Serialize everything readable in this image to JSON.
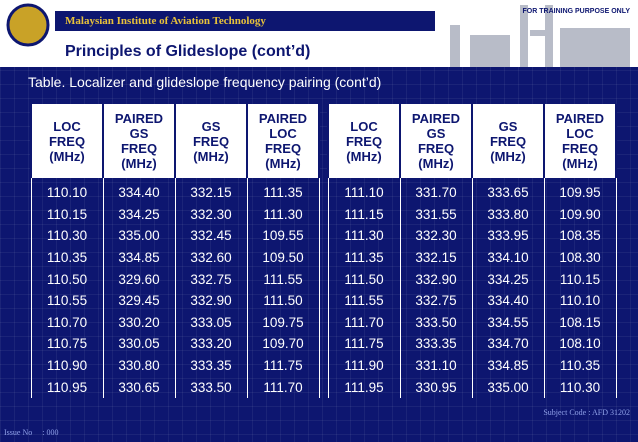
{
  "header": {
    "institute": "Malaysian Institute of Aviation Technology",
    "notice": "FOR TRAINING PURPOSE ONLY",
    "title": "Principles of Glideslope (cont’d)"
  },
  "caption": "Table.  Localizer and glideslope frequency pairing (cont’d)",
  "tables": [
    {
      "headers": [
        "LOC\nFREQ\n(MHz)",
        "PAIRED\nGS\nFREQ\n(MHz)",
        "GS\nFREQ\n(MHz)",
        "PAIRED\nLOC\nFREQ\n(MHz)"
      ],
      "rows": [
        [
          "110.10",
          "334.40",
          "332.15",
          "111.35"
        ],
        [
          "110.15",
          "334.25",
          "332.30",
          "111.30"
        ],
        [
          "110.30",
          "335.00",
          "332.45",
          "109.55"
        ],
        [
          "110.35",
          "334.85",
          "332.60",
          "109.50"
        ],
        [
          "110.50",
          "329.60",
          "332.75",
          "111.55"
        ],
        [
          "110.55",
          "329.45",
          "332.90",
          "111.50"
        ],
        [
          "110.70",
          "330.20",
          "333.05",
          "109.75"
        ],
        [
          "110.75",
          "330.05",
          "333.20",
          "109.70"
        ],
        [
          "110.90",
          "330.80",
          "333.35",
          "111.75"
        ],
        [
          "110.95",
          "330.65",
          "333.50",
          "111.70"
        ]
      ]
    },
    {
      "headers": [
        "LOC\nFREQ\n(MHz)",
        "PAIRED\nGS\nFREQ\n(MHz)",
        "GS\nFREQ\n(MHz)",
        "PAIRED\nLOC\nFREQ\n(MHz)"
      ],
      "rows": [
        [
          "111.10",
          "331.70",
          "333.65",
          "109.95"
        ],
        [
          "111.15",
          "331.55",
          "333.80",
          "109.90"
        ],
        [
          "111.30",
          "332.30",
          "333.95",
          "108.35"
        ],
        [
          "111.35",
          "332.15",
          "334.10",
          "108.30"
        ],
        [
          "111.50",
          "332.90",
          "334.25",
          "110.15"
        ],
        [
          "111.55",
          "332.75",
          "334.40",
          "110.10"
        ],
        [
          "111.70",
          "333.50",
          "334.55",
          "108.15"
        ],
        [
          "111.75",
          "333.35",
          "334.70",
          "108.10"
        ],
        [
          "111.90",
          "331.10",
          "334.85",
          "110.35"
        ],
        [
          "111.95",
          "330.95",
          "335.00",
          "110.30"
        ]
      ]
    }
  ],
  "footer": {
    "subject": "Subject Code : AFD 31202",
    "issue": "Issue No     : 000"
  }
}
